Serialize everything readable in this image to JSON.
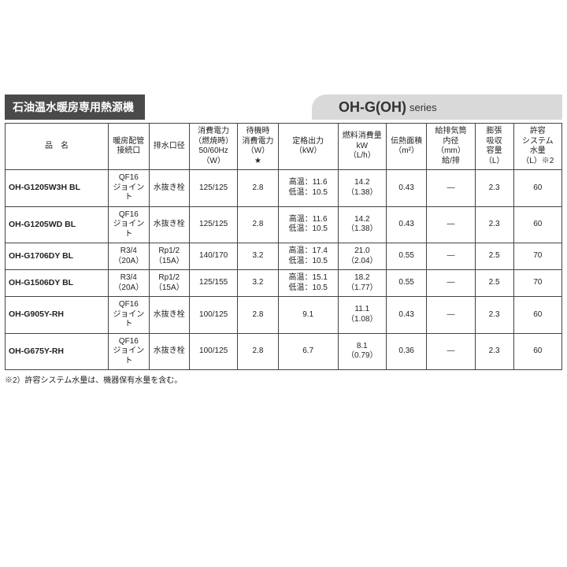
{
  "header": {
    "title_left": "石油温水暖房専用熱源機",
    "title_right": "OH-G(OH)",
    "series_label": "series"
  },
  "columns": [
    "品　名",
    "暖房配管\n接続口",
    "排水口径",
    "消費電力\n（燃焼時）\n50/60Hz\n（W）",
    "待機時\n消費電力\n（W）\n★",
    "定格出力\n（kW）",
    "燃料消費量\nkW\n（L/h）",
    "伝熱面積\n（m²）",
    "給排気筒\n内径\n（mm）\n給/排",
    "膨張\n吸収\n容量\n（L）",
    "許容\nシステム\n水量\n（L）※2"
  ],
  "rows": [
    {
      "name": "OH-G1205W3H BL",
      "conn": "QF16\nジョイント",
      "drain": "水抜き栓",
      "power": "125/125",
      "standby": "2.8",
      "output": "高温：11.6\n低温：10.5",
      "fuel": "14.2\n（1.38）",
      "area": "0.43",
      "pipe": "—",
      "exp": "2.3",
      "cap": "60"
    },
    {
      "name": "OH-G1205WD BL",
      "conn": "QF16\nジョイント",
      "drain": "水抜き栓",
      "power": "125/125",
      "standby": "2.8",
      "output": "高温：11.6\n低温：10.5",
      "fuel": "14.2\n（1.38）",
      "area": "0.43",
      "pipe": "—",
      "exp": "2.3",
      "cap": "60"
    },
    {
      "name": "OH-G1706DY BL",
      "conn": "R3/4\n（20A）",
      "drain": "Rp1/2\n（15A）",
      "power": "140/170",
      "standby": "3.2",
      "output": "高温：17.4\n低温：10.5",
      "fuel": "21.0\n（2.04）",
      "area": "0.55",
      "pipe": "—",
      "exp": "2.5",
      "cap": "70"
    },
    {
      "name": "OH-G1506DY BL",
      "conn": "R3/4\n（20A）",
      "drain": "Rp1/2\n（15A）",
      "power": "125/155",
      "standby": "3.2",
      "output": "高温：15.1\n低温：10.5",
      "fuel": "18.2\n（1.77）",
      "area": "0.55",
      "pipe": "—",
      "exp": "2.5",
      "cap": "70"
    },
    {
      "name": "OH-G905Y-RH",
      "conn": "QF16\nジョイント",
      "drain": "水抜き栓",
      "power": "100/125",
      "standby": "2.8",
      "output": "9.1",
      "fuel": "11.1\n（1.08）",
      "area": "0.43",
      "pipe": "—",
      "exp": "2.3",
      "cap": "60"
    },
    {
      "name": "OH-G675Y-RH",
      "conn": "QF16\nジョイント",
      "drain": "水抜き栓",
      "power": "100/125",
      "standby": "2.8",
      "output": "6.7",
      "fuel": "8.1\n（0.79）",
      "area": "0.36",
      "pipe": "—",
      "exp": "2.3",
      "cap": "60"
    }
  ],
  "footnote": "※2）許容システム水量は、機器保有水量を含む。"
}
